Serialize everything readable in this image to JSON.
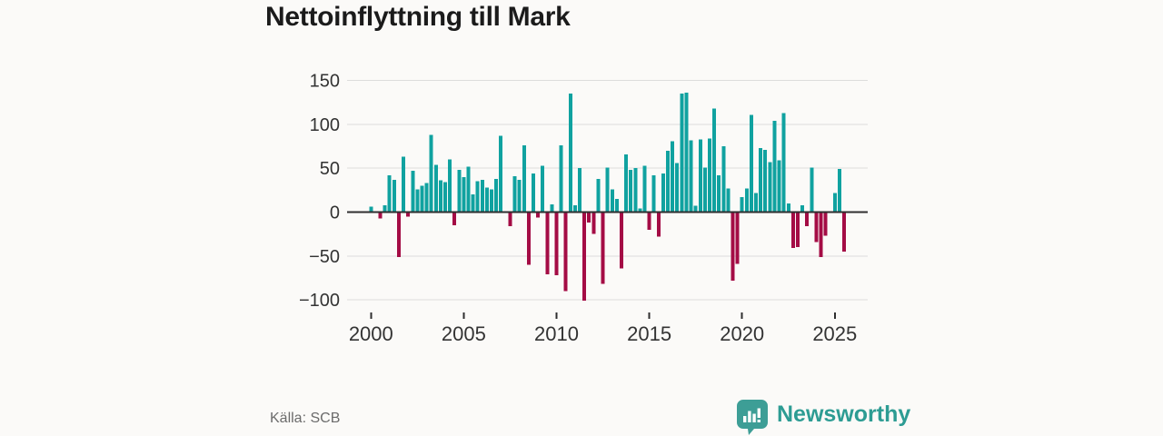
{
  "title": "Nettoinflyttning till Mark",
  "footer": {
    "source": "Källa: SCB",
    "brand": "Newsworthy"
  },
  "colors": {
    "positive_bar": "#10a2a0",
    "negative_bar": "#a40c45",
    "gridline": "#dcdcdc",
    "zero_axis": "#2f2f2f",
    "axis_text": "#333333",
    "title_text": "#1b1b1b",
    "source_text": "#6b6b6b",
    "brand_teal": "#2d9c93",
    "logo_icon_teal": "#3d9e96",
    "background": "#fbfaf8"
  },
  "chart_data": {
    "type": "bar",
    "title": "Nettoinflyttning till Mark",
    "frequency": "quarterly",
    "x_start": {
      "year": 2000,
      "quarter": 1
    },
    "x_end": {
      "year": 2025,
      "quarter": 3
    },
    "ylim": [
      -100,
      150
    ],
    "grid": "horizontal",
    "legend": "none",
    "yticks": [
      {
        "value": 150,
        "label": "150"
      },
      {
        "value": 100,
        "label": "100"
      },
      {
        "value": 50,
        "label": "50"
      },
      {
        "value": 0,
        "label": "0"
      },
      {
        "value": -50,
        "label": "−50"
      },
      {
        "value": -100,
        "label": "−100"
      }
    ],
    "xticks": [
      {
        "year": 2000,
        "label": "2000"
      },
      {
        "year": 2005,
        "label": "2005"
      },
      {
        "year": 2010,
        "label": "2010"
      },
      {
        "year": 2015,
        "label": "2015"
      },
      {
        "year": 2020,
        "label": "2020"
      },
      {
        "year": 2025,
        "label": "2025"
      }
    ],
    "values": [
      6,
      0,
      -7,
      8,
      42,
      37,
      -51,
      63,
      -5,
      47,
      26,
      30,
      33,
      88,
      54,
      36,
      34,
      60,
      -15,
      48,
      40,
      52,
      20,
      35,
      37,
      28,
      26,
      38,
      87,
      0,
      -16,
      41,
      37,
      76,
      -60,
      44,
      -6,
      53,
      -71,
      9,
      -72,
      76,
      -90,
      135,
      8,
      50,
      -101,
      -12,
      -25,
      38,
      -82,
      51,
      26,
      15,
      -64,
      66,
      48,
      50,
      4,
      53,
      -20,
      42,
      -28,
      44,
      70,
      81,
      56,
      135,
      136,
      82,
      7,
      83,
      51,
      84,
      118,
      42,
      75,
      27,
      -78,
      -59,
      17,
      27,
      111,
      22,
      73,
      71,
      57,
      104,
      59,
      113,
      10,
      -41,
      -40,
      8,
      -16,
      51,
      -34,
      -51,
      -27,
      0,
      22,
      49,
      -45
    ]
  }
}
